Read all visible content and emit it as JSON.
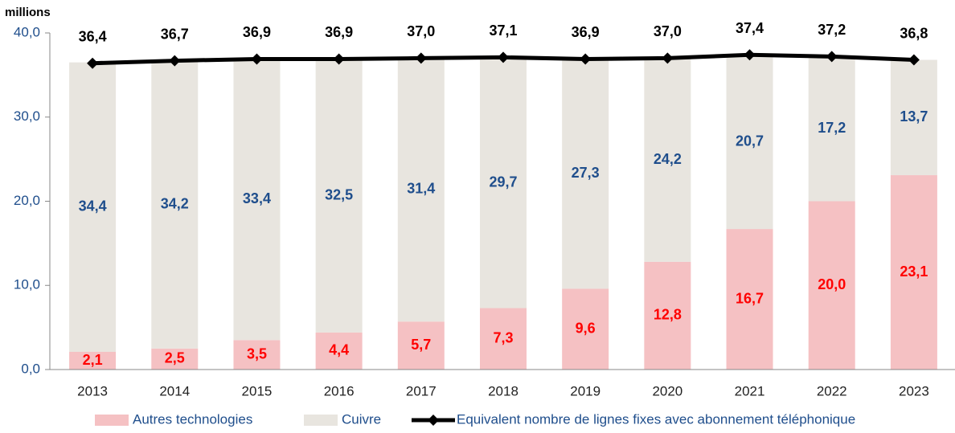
{
  "chart_data": {
    "type": "bar",
    "stacked": true,
    "ylabel": "millions",
    "categories": [
      "2013",
      "2014",
      "2015",
      "2016",
      "2017",
      "2018",
      "2019",
      "2020",
      "2021",
      "2022",
      "2023"
    ],
    "series": [
      {
        "name": "Autres technologies",
        "color": "#f5c1c3",
        "label_color": "#ff0000",
        "values": [
          2.1,
          2.5,
          3.5,
          4.4,
          5.7,
          7.3,
          9.6,
          12.8,
          16.7,
          20.0,
          23.1
        ],
        "value_labels": [
          "2,1",
          "2,5",
          "3,5",
          "4,4",
          "5,7",
          "7,3",
          "9,6",
          "12,8",
          "16,7",
          "20,0",
          "23,1"
        ]
      },
      {
        "name": "Cuivre",
        "color": "#e8e5df",
        "label_color": "#1f4e8c",
        "values": [
          34.4,
          34.2,
          33.4,
          32.5,
          31.4,
          29.7,
          27.3,
          24.2,
          20.7,
          17.2,
          13.7
        ],
        "value_labels": [
          "34,4",
          "34,2",
          "33,4",
          "32,5",
          "31,4",
          "29,7",
          "27,3",
          "24,2",
          "20,7",
          "17,2",
          "13,7"
        ]
      },
      {
        "name": "Equivalent nombre de lignes fixes avec abonnement téléphonique",
        "type": "line",
        "color": "#000000",
        "label_color": "#000000",
        "values": [
          36.4,
          36.7,
          36.9,
          36.9,
          37.0,
          37.1,
          36.9,
          37.0,
          37.4,
          37.2,
          36.8
        ],
        "value_labels": [
          "36,4",
          "36,7",
          "36,9",
          "36,9",
          "37,0",
          "37,1",
          "36,9",
          "37,0",
          "37,4",
          "37,2",
          "36,8"
        ]
      }
    ],
    "ylim": [
      0,
      40
    ],
    "yticks": [
      {
        "value": 0,
        "label": "0,0"
      },
      {
        "value": 10,
        "label": "10,0"
      },
      {
        "value": 20,
        "label": "20,0"
      },
      {
        "value": 30,
        "label": "30,0"
      },
      {
        "value": 40,
        "label": "40,0"
      }
    ],
    "legend": "bottom"
  }
}
